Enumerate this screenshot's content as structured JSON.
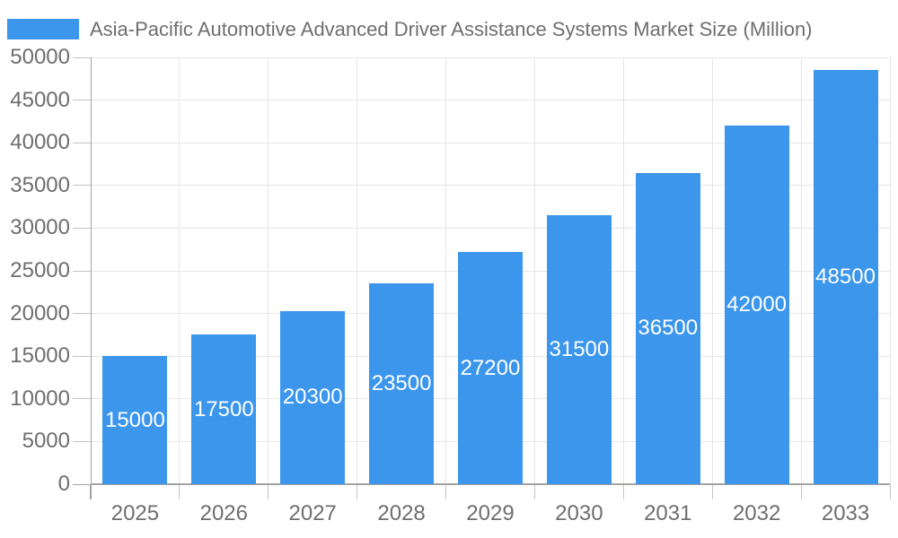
{
  "chart_data": {
    "type": "bar",
    "title": "Asia-Pacific Automotive Advanced Driver Assistance Systems Market Size (Million)",
    "legend_entries": [
      "Asia-Pacific Automotive Advanced Driver Assistance Systems Market Size (Million)"
    ],
    "legend_position": "top-left",
    "categories": [
      "2025",
      "2026",
      "2027",
      "2028",
      "2029",
      "2030",
      "2031",
      "2032",
      "2033"
    ],
    "values": [
      15000,
      17500,
      20300,
      23500,
      27200,
      31500,
      36500,
      42000,
      48500
    ],
    "value_labels_shown": true,
    "xlabel": "",
    "ylabel": "",
    "ylim": [
      0,
      50000
    ],
    "ytick_step": 5000,
    "ytick_labels": [
      "0",
      "5000",
      "10000",
      "15000",
      "20000",
      "25000",
      "30000",
      "35000",
      "40000",
      "45000",
      "50000"
    ],
    "grid": true,
    "colors": {
      "bar": "#3b96ec",
      "bar_value_text": "#ffffff",
      "axis_line": "#a3a3a3",
      "tick_mark": "#c4c4c4",
      "gridline": "#e6e6e6",
      "text": "#6e6e6e",
      "background": "#ffffff"
    }
  }
}
